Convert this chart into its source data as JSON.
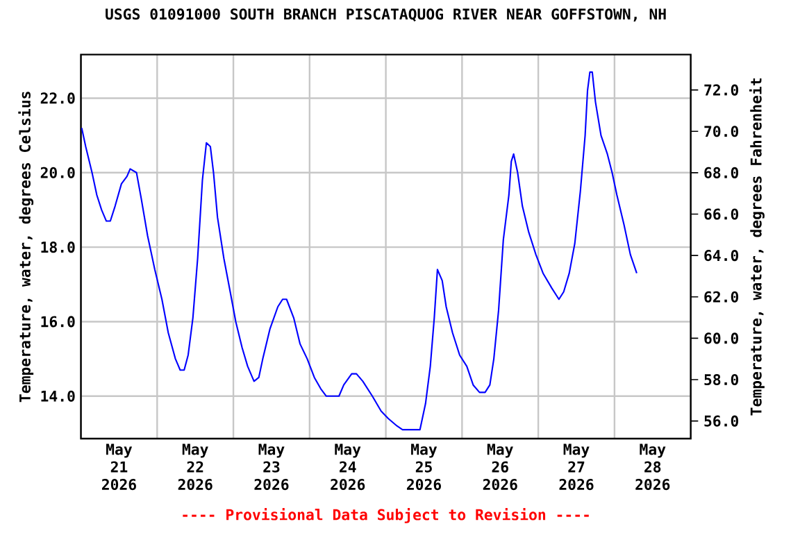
{
  "chart_data": {
    "type": "line",
    "title": "USGS 01091000 SOUTH BRANCH PISCATAQUOG RIVER NEAR GOFFSTOWN, NH",
    "ylabel": "Temperature, water, degrees Celsius",
    "y2label": "Temperature, water, degrees Fahrenheit",
    "annotations": [
      "---- Provisional Data Subject to Revision ----"
    ],
    "color": "#0000ff",
    "grid": true,
    "xlim": [
      "2026-05-21T00:00",
      "2026-05-29T00:00"
    ],
    "xticks": [
      {
        "value": "2026-05-21T00:00",
        "label": null
      },
      {
        "value": "2026-05-22T00:00",
        "label": null
      },
      {
        "value": "2026-05-23T00:00",
        "label": null
      },
      {
        "value": "2026-05-24T00:00",
        "label": null
      },
      {
        "value": "2026-05-25T00:00",
        "label": null
      },
      {
        "value": "2026-05-26T00:00",
        "label": null
      },
      {
        "value": "2026-05-27T00:00",
        "label": null
      },
      {
        "value": "2026-05-28T00:00",
        "label": null
      },
      {
        "value": "2026-05-29T00:00",
        "label": null
      },
      {
        "value": "2026-05-21T12:00",
        "label": "May 21 2026"
      },
      {
        "value": "2026-05-22T12:00",
        "label": "May 22 2026"
      },
      {
        "value": "2026-05-23T12:00",
        "label": "May 23 2026"
      },
      {
        "value": "2026-05-24T12:00",
        "label": "May 24 2026"
      },
      {
        "value": "2026-05-25T12:00",
        "label": "May 25 2026"
      },
      {
        "value": "2026-05-26T12:00",
        "label": "May 26 2026"
      },
      {
        "value": "2026-05-27T12:00",
        "label": "May 27 2026"
      },
      {
        "value": "2026-05-28T12:00",
        "label": "May 28 2026"
      }
    ],
    "ylim": [
      12.86,
      23.17
    ],
    "yticks": [
      {
        "value": 14,
        "label": "14.0"
      },
      {
        "value": 16,
        "label": "16.0"
      },
      {
        "value": 18,
        "label": "18.0"
      },
      {
        "value": 20,
        "label": "20.0"
      },
      {
        "value": 22,
        "label": "22.0"
      }
    ],
    "y2lim": [
      55.15,
      73.71
    ],
    "y2ticks": [
      {
        "value": 56,
        "label": "56.0"
      },
      {
        "value": 58,
        "label": "58.0"
      },
      {
        "value": 60,
        "label": "60.0"
      },
      {
        "value": 62,
        "label": "62.0"
      },
      {
        "value": 64,
        "label": "64.0"
      },
      {
        "value": 66,
        "label": "66.0"
      },
      {
        "value": 68,
        "label": "68.0"
      },
      {
        "value": 70,
        "label": "70.0"
      },
      {
        "value": 72,
        "label": "72.0"
      }
    ],
    "x": [
      "2026-05-21T00:15",
      "2026-05-21T01:30",
      "2026-05-21T03:30",
      "2026-05-21T05:00",
      "2026-05-21T06:30",
      "2026-05-21T08:00",
      "2026-05-21T09:15",
      "2026-05-21T10:45",
      "2026-05-21T12:45",
      "2026-05-21T14:30",
      "2026-05-21T15:30",
      "2026-05-21T17:30",
      "2026-05-21T19:00",
      "2026-05-21T21:00",
      "2026-05-21T23:15",
      "2026-05-22T01:30",
      "2026-05-22T03:30",
      "2026-05-22T05:45",
      "2026-05-22T07:15",
      "2026-05-22T08:30",
      "2026-05-22T09:45",
      "2026-05-22T11:15",
      "2026-05-22T12:45",
      "2026-05-22T14:15",
      "2026-05-22T15:30",
      "2026-05-22T16:45",
      "2026-05-22T17:45",
      "2026-05-22T19:00",
      "2026-05-22T21:00",
      "2026-05-22T23:00",
      "2026-05-23T00:45",
      "2026-05-23T02:45",
      "2026-05-23T04:30",
      "2026-05-23T06:30",
      "2026-05-23T08:00",
      "2026-05-23T09:15",
      "2026-05-23T11:30",
      "2026-05-23T14:00",
      "2026-05-23T15:30",
      "2026-05-23T16:45",
      "2026-05-23T19:00",
      "2026-05-23T21:00",
      "2026-05-23T23:15",
      "2026-05-24T01:30",
      "2026-05-24T03:30",
      "2026-05-24T05:15",
      "2026-05-24T09:15",
      "2026-05-24T10:45",
      "2026-05-24T13:15",
      "2026-05-24T14:45",
      "2026-05-24T16:45",
      "2026-05-24T19:45",
      "2026-05-24T22:30",
      "2026-05-25T00:45",
      "2026-05-25T03:30",
      "2026-05-25T05:15",
      "2026-05-25T10:45",
      "2026-05-25T12:30",
      "2026-05-25T14:00",
      "2026-05-25T15:15",
      "2026-05-25T16:15",
      "2026-05-25T17:45",
      "2026-05-25T19:00",
      "2026-05-25T21:00",
      "2026-05-25T23:15",
      "2026-05-26T01:30",
      "2026-05-26T03:30",
      "2026-05-26T05:30",
      "2026-05-26T07:15",
      "2026-05-26T08:45",
      "2026-05-26T10:00",
      "2026-05-26T11:30",
      "2026-05-26T13:00",
      "2026-05-26T14:45",
      "2026-05-26T15:30",
      "2026-05-26T16:15",
      "2026-05-26T17:30",
      "2026-05-26T19:00",
      "2026-05-26T21:00",
      "2026-05-26T23:15",
      "2026-05-27T01:30",
      "2026-05-27T04:15",
      "2026-05-27T06:30",
      "2026-05-27T08:00",
      "2026-05-27T09:45",
      "2026-05-27T11:30",
      "2026-05-27T13:15",
      "2026-05-27T14:45",
      "2026-05-27T15:30",
      "2026-05-27T16:15",
      "2026-05-27T17:00",
      "2026-05-27T18:00",
      "2026-05-27T19:45",
      "2026-05-27T21:45",
      "2026-05-27T23:15",
      "2026-05-28T00:45",
      "2026-05-28T03:00",
      "2026-05-28T05:00",
      "2026-05-28T07:00"
    ],
    "values": [
      21.2,
      20.7,
      20.0,
      19.4,
      19.0,
      18.7,
      18.7,
      19.1,
      19.7,
      19.9,
      20.1,
      20.0,
      19.3,
      18.3,
      17.4,
      16.6,
      15.7,
      15.0,
      14.7,
      14.7,
      15.1,
      16.1,
      17.7,
      19.8,
      20.8,
      20.7,
      20.0,
      18.8,
      17.7,
      16.8,
      16.0,
      15.3,
      14.8,
      14.4,
      14.5,
      15.0,
      15.8,
      16.4,
      16.6,
      16.6,
      16.1,
      15.4,
      15.0,
      14.5,
      14.2,
      14.0,
      14.0,
      14.3,
      14.6,
      14.6,
      14.4,
      14.0,
      13.6,
      13.4,
      13.2,
      13.1,
      13.1,
      13.8,
      14.8,
      16.1,
      17.4,
      17.1,
      16.4,
      15.7,
      15.1,
      14.8,
      14.3,
      14.1,
      14.1,
      14.3,
      15.0,
      16.3,
      18.2,
      19.4,
      20.3,
      20.5,
      20.0,
      19.1,
      18.4,
      17.8,
      17.3,
      16.9,
      16.6,
      16.8,
      17.3,
      18.1,
      19.5,
      21.0,
      22.2,
      22.7,
      22.7,
      21.9,
      21.0,
      20.5,
      20.0,
      19.4,
      18.6,
      17.8,
      17.3
    ]
  }
}
